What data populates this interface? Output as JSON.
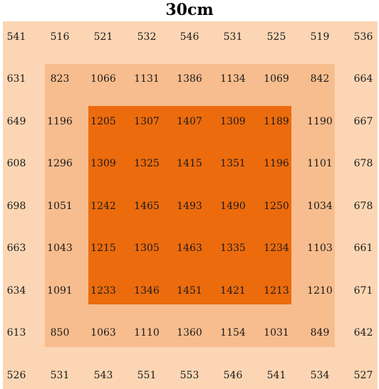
{
  "title": "30cm",
  "zones": {
    "outer_color": "#fcd6b4",
    "middle_color": "#f8bd8e",
    "inner_color": "#ec6b0d"
  },
  "grid": [
    [
      541,
      516,
      521,
      532,
      546,
      531,
      525,
      519,
      536
    ],
    [
      631,
      823,
      1066,
      1131,
      1386,
      1134,
      1069,
      842,
      664
    ],
    [
      649,
      1196,
      1205,
      1307,
      1407,
      1309,
      1189,
      1190,
      667
    ],
    [
      608,
      1296,
      1309,
      1325,
      1415,
      1351,
      1196,
      1101,
      678
    ],
    [
      698,
      1051,
      1242,
      1465,
      1493,
      1490,
      1250,
      1034,
      678
    ],
    [
      663,
      1043,
      1215,
      1305,
      1463,
      1335,
      1234,
      1103,
      661
    ],
    [
      634,
      1091,
      1233,
      1346,
      1451,
      1421,
      1213,
      1210,
      671
    ],
    [
      613,
      850,
      1063,
      1110,
      1360,
      1154,
      1031,
      849,
      642
    ],
    [
      526,
      531,
      543,
      551,
      553,
      546,
      541,
      534,
      527
    ]
  ]
}
